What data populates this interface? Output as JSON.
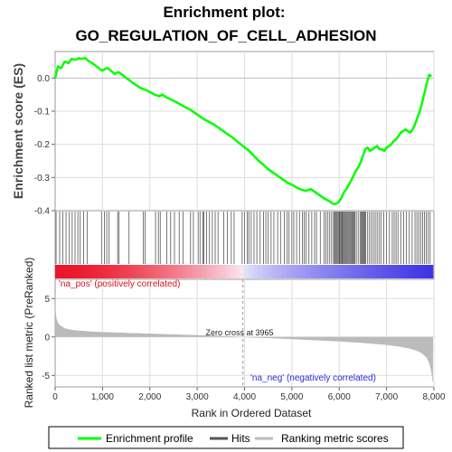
{
  "chart_data": {
    "type": "line",
    "title_line1": "Enrichment plot:",
    "title_line2": "GO_REGULATION_OF_CELL_ADHESION",
    "xlabel": "Rank in Ordered Dataset",
    "ylabel_top": "Enrichment score (ES)",
    "ylabel_bottom": "Ranked list metric (PreRanked)",
    "xlim": [
      0,
      8000
    ],
    "x_ticks": [
      "0",
      "1,000",
      "2,000",
      "3,000",
      "4,000",
      "5,000",
      "6,000",
      "7,000",
      "8,000"
    ],
    "x_tick_values": [
      0,
      1000,
      2000,
      3000,
      4000,
      5000,
      6000,
      7000,
      8000
    ],
    "es_ylim": [
      -0.4,
      0.08
    ],
    "es_ticks": [
      "0.0",
      "-0.1",
      "-0.2",
      "-0.3",
      "-0.4"
    ],
    "es_tick_values": [
      0,
      -0.1,
      -0.2,
      -0.3,
      -0.4
    ],
    "metric_ylim": [
      -6.5,
      7.5
    ],
    "metric_ticks": [
      "5",
      "0",
      "-5"
    ],
    "metric_tick_values": [
      5,
      0,
      -5
    ],
    "es_curve": {
      "name": "Enrichment profile",
      "color": "#00ff00",
      "x": [
        0,
        60,
        130,
        200,
        280,
        350,
        430,
        500,
        560,
        640,
        700,
        780,
        850,
        920,
        1000,
        1060,
        1110,
        1180,
        1260,
        1330,
        1400,
        1500,
        1600,
        1700,
        1800,
        1900,
        2000,
        2100,
        2200,
        2260,
        2350,
        2450,
        2550,
        2650,
        2750,
        2850,
        2950,
        3050,
        3150,
        3250,
        3350,
        3450,
        3550,
        3650,
        3750,
        3850,
        3965,
        4100,
        4200,
        4300,
        4400,
        4500,
        4600,
        4700,
        4800,
        4900,
        5000,
        5100,
        5200,
        5300,
        5400,
        5500,
        5600,
        5700,
        5800,
        5850,
        5900,
        5950,
        6000,
        6050,
        6100,
        6150,
        6200,
        6250,
        6300,
        6350,
        6400,
        6450,
        6500,
        6550,
        6600,
        6650,
        6700,
        6750,
        6800,
        6850,
        6900,
        6950,
        7000,
        7050,
        7100,
        7150,
        7200,
        7250,
        7300,
        7350,
        7400,
        7450,
        7500,
        7550,
        7600,
        7650,
        7700,
        7750,
        7800,
        7850,
        7900,
        7950
      ],
      "y": [
        0.0,
        0.035,
        0.03,
        0.05,
        0.045,
        0.058,
        0.055,
        0.06,
        0.058,
        0.06,
        0.052,
        0.045,
        0.038,
        0.03,
        0.022,
        0.028,
        0.03,
        0.022,
        0.012,
        0.018,
        0.012,
        0.0,
        -0.01,
        -0.02,
        -0.03,
        -0.035,
        -0.042,
        -0.05,
        -0.055,
        -0.05,
        -0.058,
        -0.065,
        -0.072,
        -0.08,
        -0.088,
        -0.095,
        -0.105,
        -0.115,
        -0.125,
        -0.132,
        -0.14,
        -0.15,
        -0.16,
        -0.17,
        -0.18,
        -0.192,
        -0.205,
        -0.22,
        -0.235,
        -0.25,
        -0.262,
        -0.275,
        -0.285,
        -0.295,
        -0.305,
        -0.315,
        -0.322,
        -0.33,
        -0.337,
        -0.34,
        -0.335,
        -0.345,
        -0.355,
        -0.365,
        -0.372,
        -0.378,
        -0.38,
        -0.378,
        -0.372,
        -0.36,
        -0.345,
        -0.335,
        -0.322,
        -0.31,
        -0.295,
        -0.28,
        -0.27,
        -0.255,
        -0.235,
        -0.215,
        -0.21,
        -0.22,
        -0.215,
        -0.21,
        -0.205,
        -0.215,
        -0.215,
        -0.22,
        -0.21,
        -0.205,
        -0.2,
        -0.19,
        -0.185,
        -0.175,
        -0.165,
        -0.16,
        -0.155,
        -0.16,
        -0.165,
        -0.155,
        -0.14,
        -0.12,
        -0.1,
        -0.075,
        -0.045,
        -0.015,
        0.01,
        0.005
      ]
    },
    "hits": {
      "name": "Hits",
      "color": "#555555",
      "x": [
        20,
        95,
        160,
        230,
        300,
        360,
        420,
        480,
        530,
        600,
        680,
        980,
        1040,
        1090,
        1140,
        1320,
        1350,
        1560,
        1860,
        1900,
        2120,
        2180,
        2220,
        2360,
        2440,
        2520,
        2620,
        2700,
        2860,
        2920,
        3020,
        3060,
        3120,
        3140,
        3200,
        3260,
        3320,
        3380,
        3440,
        3560,
        3640,
        3720,
        3780,
        3950,
        4000,
        4060,
        4090,
        4140,
        4200,
        4260,
        4330,
        4400,
        4450,
        4500,
        4560,
        4620,
        4700,
        4760,
        4840,
        4900,
        4940,
        5000,
        5040,
        5100,
        5160,
        5220,
        5260,
        5300,
        5360,
        5420,
        5480,
        5520,
        5600,
        5680,
        5720,
        5760,
        5800,
        5840,
        5880,
        5900,
        5920,
        5940,
        5960,
        5980,
        6000,
        6010,
        6020,
        6040,
        6060,
        6070,
        6090,
        6110,
        6130,
        6150,
        6170,
        6190,
        6210,
        6230,
        6250,
        6270,
        6290,
        6310,
        6330,
        6360,
        6400,
        6440,
        6460,
        6480,
        6500,
        6520,
        6540,
        6560,
        6600,
        6640,
        6680,
        6720,
        6760,
        6800,
        6840,
        6880,
        6940,
        7000,
        7060,
        7120,
        7160,
        7200,
        7240,
        7300,
        7360,
        7420,
        7480,
        7540,
        7600,
        7640,
        7680,
        7720,
        7760,
        7800,
        7840,
        7880,
        7920
      ]
    },
    "metric": {
      "name": "Ranking metric scores",
      "color": "#bbbbbb",
      "x": [
        0,
        10,
        30,
        60,
        100,
        150,
        200,
        300,
        400,
        600,
        800,
        1000,
        1500,
        2000,
        2500,
        3000,
        3500,
        3965,
        4500,
        5000,
        5500,
        6000,
        6500,
        7000,
        7300,
        7500,
        7650,
        7750,
        7850,
        7900,
        7940,
        7960,
        7975
      ],
      "y": [
        4.0,
        3.0,
        2.2,
        1.8,
        1.5,
        1.3,
        1.1,
        0.95,
        0.85,
        0.75,
        0.65,
        0.6,
        0.5,
        0.4,
        0.3,
        0.2,
        0.1,
        0.0,
        -0.12,
        -0.25,
        -0.4,
        -0.55,
        -0.75,
        -1.0,
        -1.25,
        -1.5,
        -1.8,
        -2.1,
        -2.7,
        -3.3,
        -4.2,
        -5.0,
        -6.0
      ]
    },
    "zero_cross_label": "Zero cross at 3965",
    "zero_cross_x": 3965,
    "pos_label": "'na_pos' (positively correlated)",
    "neg_label": "'na_neg' (negatively correlated)",
    "legend": {
      "placement": "bottom",
      "items": [
        {
          "label": "Enrichment profile",
          "color": "#00ff00"
        },
        {
          "label": "Hits",
          "color": "#555555"
        },
        {
          "label": "Ranking metric scores",
          "color": "#bbbbbb"
        }
      ]
    }
  }
}
